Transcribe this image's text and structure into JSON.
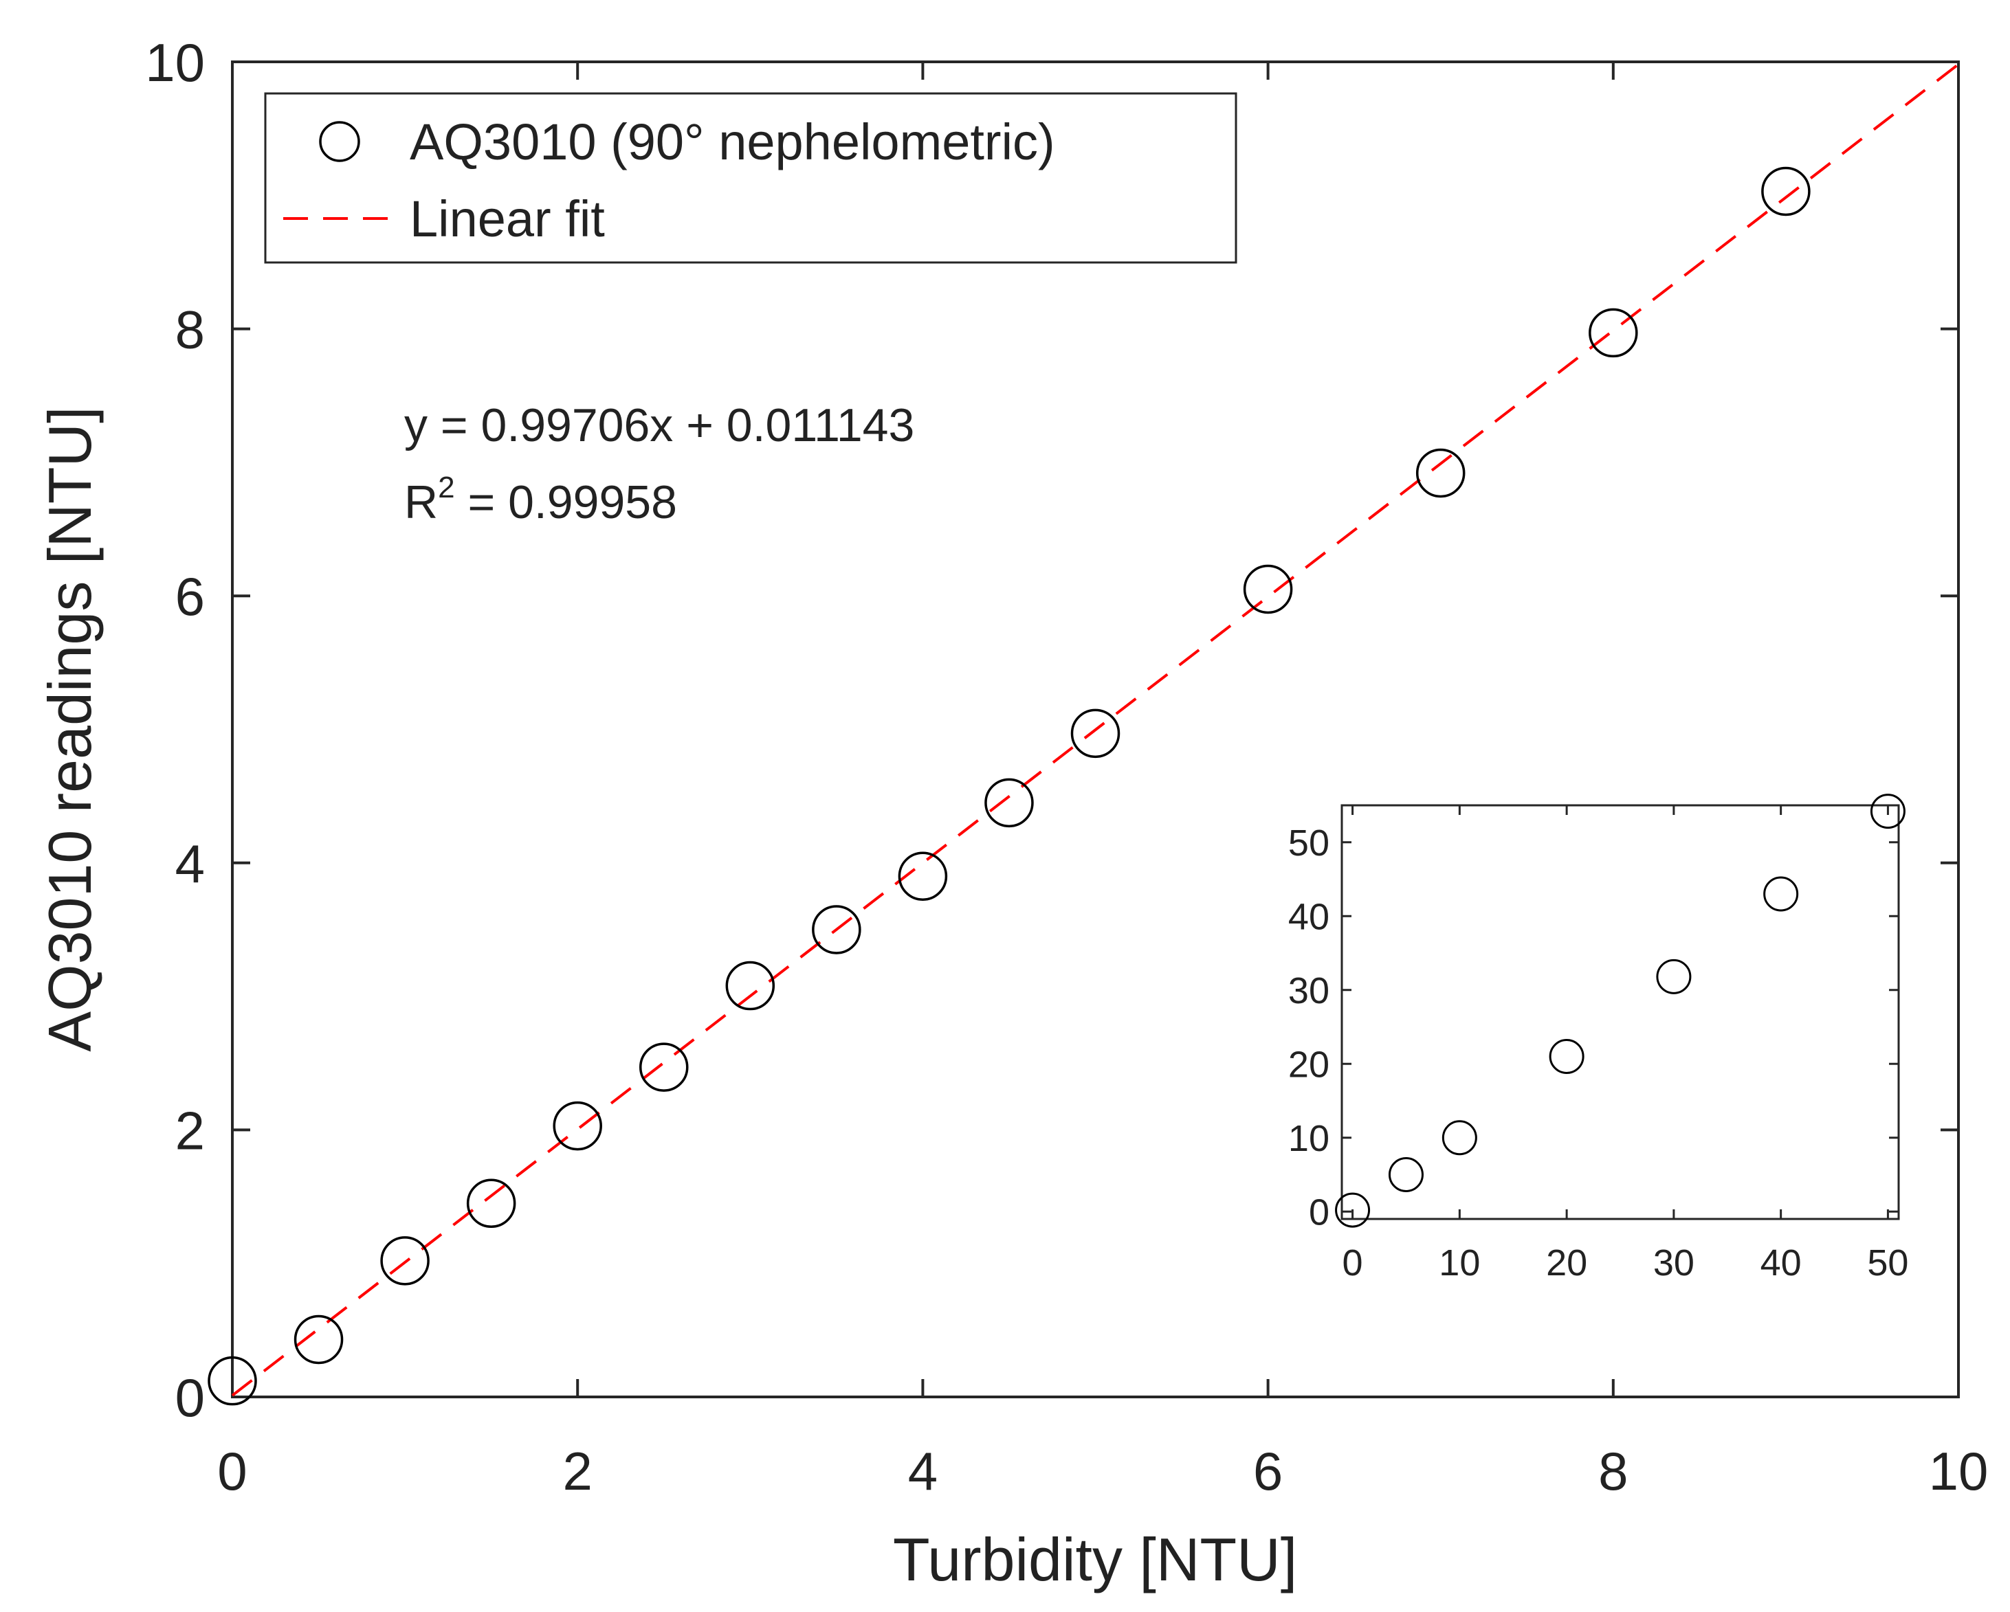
{
  "chart_data": [
    {
      "type": "scatter",
      "xlabel": "Turbidity [NTU]",
      "ylabel": "AQ3010 readings [NTU]",
      "xlim": [
        0,
        10
      ],
      "ylim": [
        0,
        10
      ],
      "xticks": [
        0,
        2,
        4,
        6,
        8,
        10
      ],
      "yticks": [
        0,
        2,
        4,
        6,
        8,
        10
      ],
      "grid": false,
      "legend_position": "top-left",
      "series": [
        {
          "name": "AQ3010 (90° nephelometric)",
          "marker": "open-circle",
          "color": "#000000",
          "x": [
            0,
            0.5,
            1,
            1.5,
            2,
            2.5,
            3,
            3.5,
            4,
            4.5,
            5,
            6,
            7,
            8,
            9
          ],
          "y": [
            0.12,
            0.43,
            1.02,
            1.45,
            2.03,
            2.47,
            3.08,
            3.5,
            3.9,
            4.45,
            4.97,
            6.05,
            6.92,
            7.97,
            9.03
          ]
        },
        {
          "name": "Linear fit",
          "line_style": "dashed",
          "color": "#ff0000",
          "slope": 0.99706,
          "intercept": 0.011143,
          "x": [
            0,
            10
          ],
          "y": [
            0.011143,
            9.981743
          ]
        }
      ],
      "annotations": {
        "equation": "y = 0.99706x + 0.011143",
        "r2_prefix": "R",
        "r2_superscript": "2",
        "r2_value": " = 0.99958"
      }
    },
    {
      "type": "scatter",
      "placement": "inset bottom-right",
      "xlim": [
        -1,
        51
      ],
      "ylim": [
        -1,
        55
      ],
      "xticks": [
        0,
        10,
        20,
        30,
        40,
        50
      ],
      "yticks": [
        0,
        10,
        20,
        30,
        40,
        50
      ],
      "series": [
        {
          "name": "AQ3010 (90° nephelometric)",
          "marker": "open-circle",
          "color": "#000000",
          "x": [
            0,
            5,
            10,
            20,
            30,
            40,
            50
          ],
          "y": [
            0.2,
            5,
            10,
            21,
            31.8,
            43,
            54.2
          ]
        }
      ]
    }
  ]
}
